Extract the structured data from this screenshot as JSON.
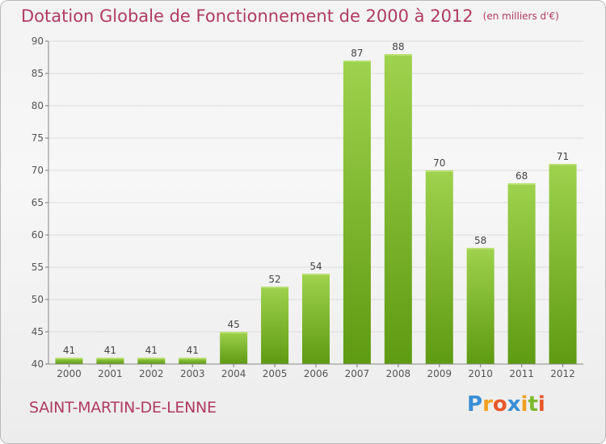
{
  "title": "Dotation Globale de Fonctionnement de 2000 à 2012",
  "unit_note": "(en milliers d'€)",
  "commune": "SAINT-MARTIN-DE-LENNE",
  "logo": {
    "text": "Proxiti",
    "letters": [
      {
        "ch": "P",
        "color": "#3a8fd6"
      },
      {
        "ch": "r",
        "color": "#f0a020"
      },
      {
        "ch": "o",
        "color": "#e8572a"
      },
      {
        "ch": "x",
        "color": "#3a8fd6"
      },
      {
        "ch": "i",
        "color": "#f0a020"
      },
      {
        "ch": "t",
        "color": "#7cb82f"
      },
      {
        "ch": "i",
        "color": "#e8572a"
      }
    ]
  },
  "colors": {
    "bar_light": "#9fd24e",
    "bar_dark": "#5e9a12",
    "title": "#b03b60",
    "axis": "#555555",
    "grid": "#dcdcdc"
  },
  "chart_data": {
    "type": "bar",
    "title": "Dotation Globale de Fonctionnement de 2000 à 2012",
    "xlabel": "",
    "ylabel": "",
    "categories": [
      "2000",
      "2001",
      "2002",
      "2003",
      "2004",
      "2005",
      "2006",
      "2007",
      "2008",
      "2009",
      "2010",
      "2011",
      "2012"
    ],
    "values": [
      41,
      41,
      41,
      41,
      45,
      52,
      54,
      87,
      88,
      70,
      58,
      68,
      71
    ],
    "ylim": [
      40,
      90
    ],
    "yticks": [
      40,
      45,
      50,
      55,
      60,
      65,
      70,
      75,
      80,
      85,
      90
    ],
    "grid": true
  }
}
